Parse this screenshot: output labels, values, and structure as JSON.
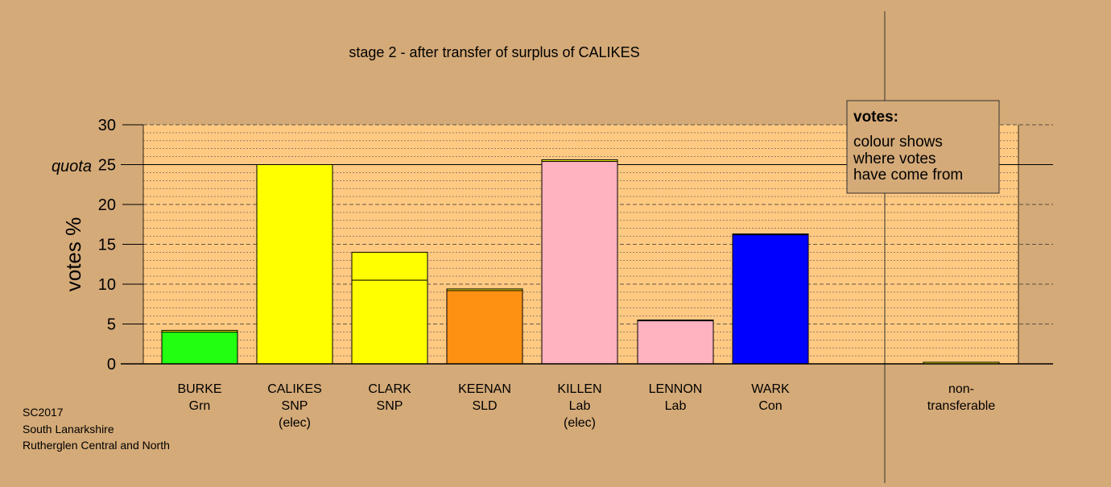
{
  "chart_data": {
    "type": "bar",
    "title": "stage 2 - after transfer of surplus of CALIKES",
    "ylabel": "votes %",
    "ylim": [
      0,
      30
    ],
    "yticks": [
      0,
      5,
      10,
      15,
      20,
      25,
      30
    ],
    "quota": {
      "label": "quota",
      "value": 25
    },
    "grid": true,
    "legend": {
      "title": "votes:",
      "lines": [
        "colour shows",
        "where votes",
        "have come from"
      ],
      "placement": "top-right"
    },
    "categories": [
      {
        "name": "BURKE",
        "lines": [
          "BURKE",
          "Grn"
        ]
      },
      {
        "name": "CALIKES",
        "lines": [
          "CALIKES",
          "SNP",
          "(elec)"
        ]
      },
      {
        "name": "CLARK",
        "lines": [
          "CLARK",
          "SNP"
        ]
      },
      {
        "name": "KEENAN",
        "lines": [
          "KEENAN",
          "SLD"
        ]
      },
      {
        "name": "KILLEN",
        "lines": [
          "KILLEN",
          "Lab",
          "(elec)"
        ]
      },
      {
        "name": "LENNON",
        "lines": [
          "LENNON",
          "Lab"
        ]
      },
      {
        "name": "WARK",
        "lines": [
          "WARK",
          "Con"
        ]
      },
      {
        "name": "non-transferable",
        "lines": [
          "non-",
          "transferable"
        ]
      }
    ],
    "bars": [
      {
        "candidate": "BURKE",
        "segments": [
          {
            "value": 4.0,
            "color": "#22ff11"
          },
          {
            "value": 0.2,
            "color": "#ffff00"
          }
        ]
      },
      {
        "candidate": "CALIKES",
        "segments": [
          {
            "value": 25.0,
            "color": "#ffff00"
          }
        ]
      },
      {
        "candidate": "CLARK",
        "segments": [
          {
            "value": 10.5,
            "color": "#ffff00"
          },
          {
            "value": 3.5,
            "color": "#ffff00"
          }
        ]
      },
      {
        "candidate": "KEENAN",
        "segments": [
          {
            "value": 9.2,
            "color": "#ff9112"
          },
          {
            "value": 0.2,
            "color": "#ffff00"
          }
        ]
      },
      {
        "candidate": "KILLEN",
        "segments": [
          {
            "value": 25.4,
            "color": "#ffb2c0"
          },
          {
            "value": 0.2,
            "color": "#ffff00"
          }
        ]
      },
      {
        "candidate": "LENNON",
        "segments": [
          {
            "value": 5.4,
            "color": "#ffb2c0"
          },
          {
            "value": 0.1,
            "color": "#ffff00"
          }
        ]
      },
      {
        "candidate": "WARK",
        "segments": [
          {
            "value": 16.2,
            "color": "#0000ff"
          },
          {
            "value": 0.1,
            "color": "#ffff00"
          }
        ]
      },
      {
        "candidate": "non-transferable",
        "segments": [
          {
            "value": 0.2,
            "color": "#ffff00"
          }
        ]
      }
    ],
    "colors": {
      "background": "#d4aa78",
      "plot_area": "#ffc982",
      "Grn": "#22ff11",
      "SNP": "#ffff00",
      "SLD": "#ff9112",
      "Lab": "#ffb2c0",
      "Con": "#0000ff"
    }
  },
  "footer": {
    "line1": "SC2017",
    "line2": "South Lanarkshire",
    "line3": "Rutherglen Central and North"
  }
}
